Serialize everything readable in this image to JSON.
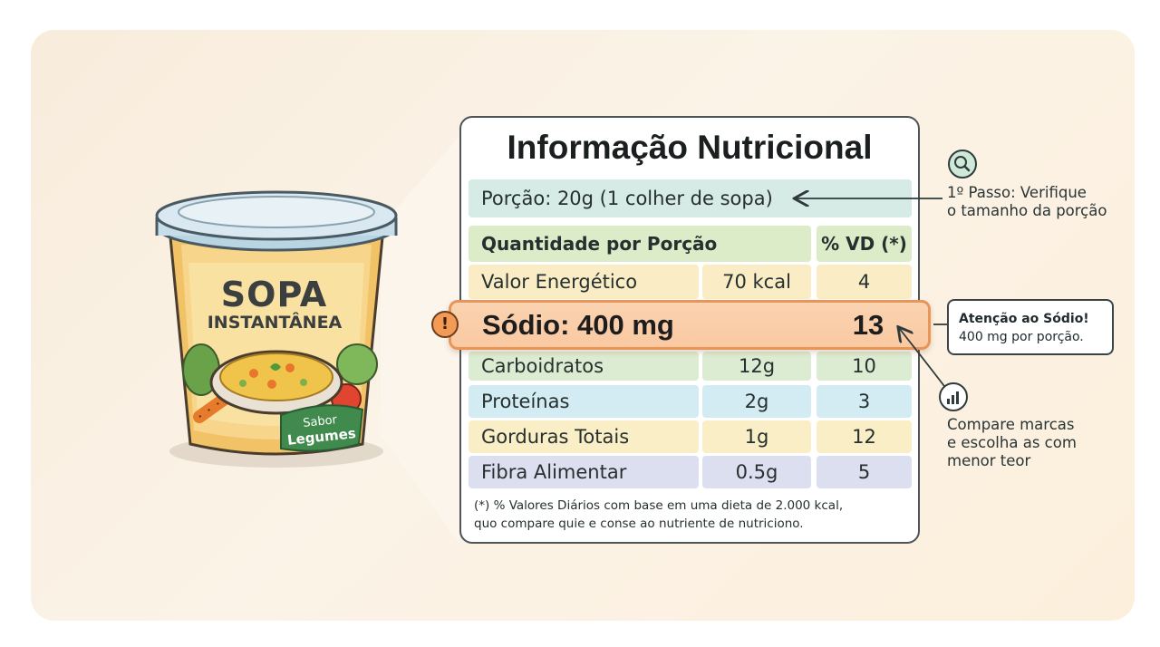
{
  "product": {
    "title": "SOPA",
    "subtitle": "INSTANTÂNEA",
    "flavor_line1": "Sabor",
    "flavor_line2": "Legumes"
  },
  "label": {
    "title": "Informação Nutricional",
    "serving": "Porção: 20g (1 colher de sopa)",
    "header_quantity": "Quantidade por Porção",
    "header_vd": "% VD (*)",
    "rows": [
      {
        "name": "Valor Energético",
        "amount": "70 kcal",
        "vd": "4"
      },
      {
        "name": "Sódio: 400 mg",
        "amount": "",
        "vd": "13"
      },
      {
        "name": "Carboidratos",
        "amount": "12g",
        "vd": "10"
      },
      {
        "name": "Proteínas",
        "amount": "2g",
        "vd": "3"
      },
      {
        "name": "Gorduras Totais",
        "amount": "1g",
        "vd": "12"
      },
      {
        "name": "Fibra Alimentar",
        "amount": "0.5g",
        "vd": "5"
      }
    ],
    "footnote_line1": "(*) % Valores Diários com base em uma dieta de 2.000 kcal,",
    "footnote_line2": "quo compare quie e conse ao nutriente de nutriciono."
  },
  "annotations": {
    "step1_line1": "1º Passo: Verifique",
    "step1_line2": "o tamanho da porção",
    "attention_title": "Atenção ao Sódio!",
    "attention_text": "400 mg por porção.",
    "compare_line1": "Compare marcas",
    "compare_line2": "e escolha as com",
    "compare_line3": "menor teor"
  },
  "icons": {
    "step1": "magnifier-icon",
    "warning": "exclamation-icon",
    "compare": "bar-chart-icon"
  },
  "colors": {
    "highlight_border": "#e8955a",
    "highlight_fill": "#f9c9a2",
    "icon_green": "#cfe9d8"
  }
}
